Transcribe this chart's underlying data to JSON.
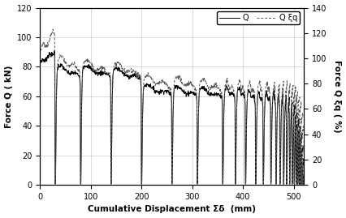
{
  "xlabel": "Cumulative Displacement Σδ  (mm)",
  "ylabel_left": "Force Q ( kN)",
  "ylabel_right": "Force Q ξq ( %)",
  "xlim": [
    0,
    520
  ],
  "ylim_left": [
    0,
    120
  ],
  "ylim_right": [
    0,
    140
  ],
  "yticks_left": [
    0,
    20,
    40,
    60,
    80,
    100,
    120
  ],
  "yticks_right": [
    0,
    20,
    40,
    60,
    80,
    100,
    120,
    140
  ],
  "xticks": [
    0,
    100,
    200,
    300,
    400,
    500
  ],
  "legend_labels": [
    "Q",
    "Q ξq"
  ],
  "line_color": "#000000",
  "dotted_color": "#555555",
  "background_color": "#ffffff",
  "grid_color": "#aaaaaa",
  "drop_positions": [
    30,
    80,
    140,
    200,
    260,
    310,
    360,
    385,
    405,
    425,
    440,
    455,
    465,
    473,
    480,
    486,
    492,
    497,
    501,
    505,
    508,
    511,
    513,
    515,
    517,
    519
  ],
  "peaks_Q": [
    90,
    80,
    80,
    78,
    67,
    66,
    65,
    65,
    65,
    63,
    62,
    62,
    62,
    61,
    60,
    59,
    58,
    55,
    52,
    48,
    43,
    38,
    32,
    24,
    15,
    6
  ],
  "peaks_xi": [
    120,
    100,
    97,
    95,
    85,
    84,
    82,
    81,
    81,
    80,
    80,
    80,
    79,
    79,
    79,
    78,
    78,
    77,
    75,
    72,
    68,
    62,
    54,
    44,
    32,
    18
  ]
}
